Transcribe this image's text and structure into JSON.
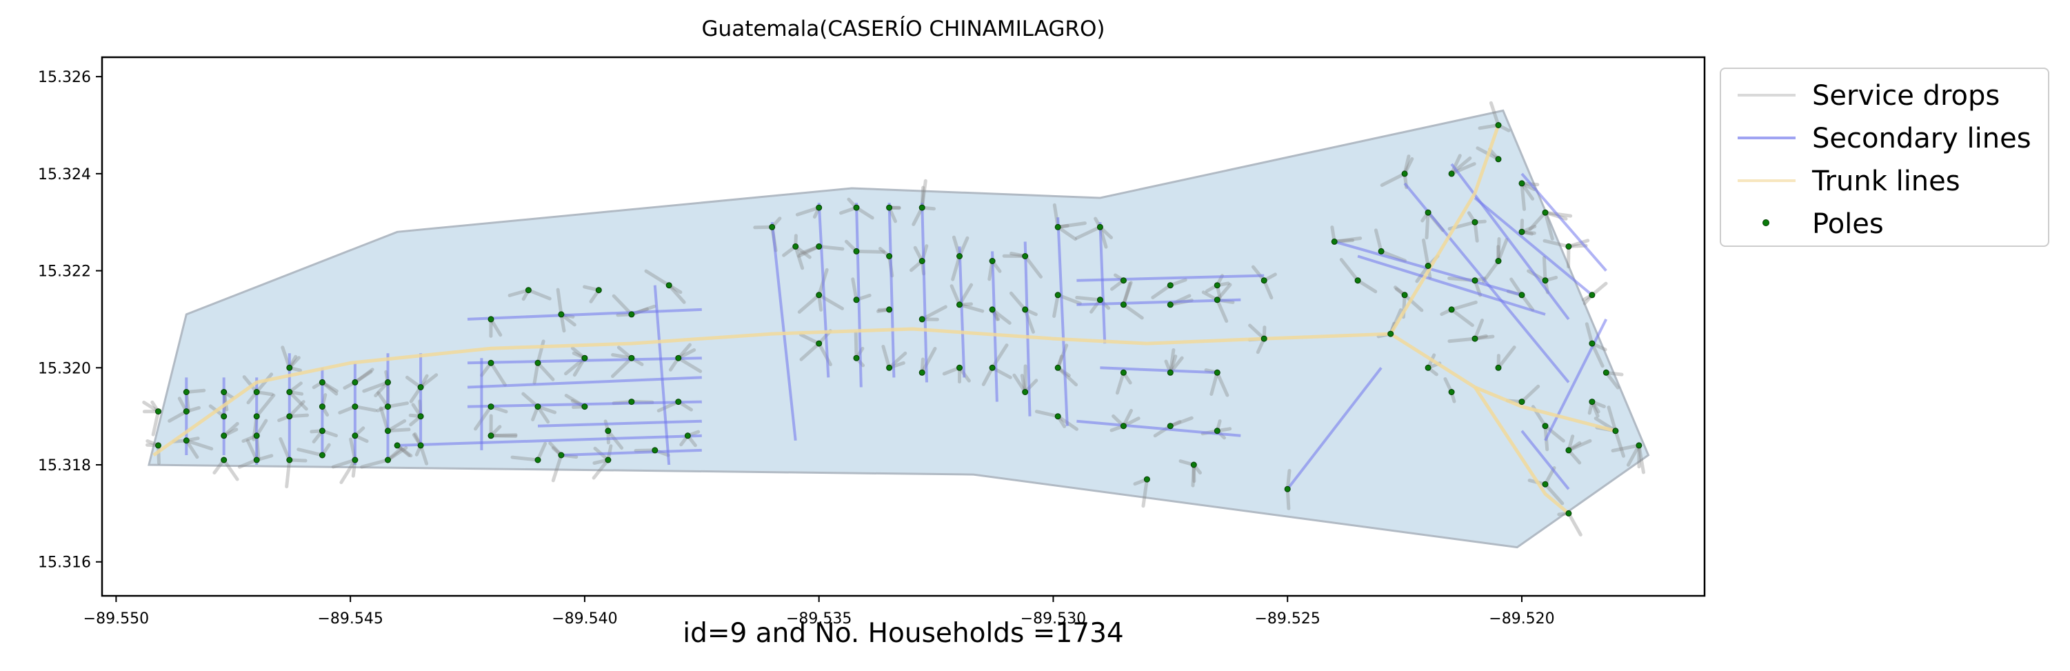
{
  "chart_data": {
    "type": "map",
    "title": "Guatemala(CASERÍO CHINAMILAGRO)",
    "caption": "id=9 and No. Households =1734",
    "xlim": [
      -89.5503,
      -89.5161
    ],
    "ylim": [
      15.3153,
      15.3264
    ],
    "x_ticks": [
      {
        "value": -89.55,
        "label": "−89.550"
      },
      {
        "value": -89.545,
        "label": "−89.545"
      },
      {
        "value": -89.54,
        "label": "−89.540"
      },
      {
        "value": -89.535,
        "label": "−89.535"
      },
      {
        "value": -89.53,
        "label": "−89.530"
      },
      {
        "value": -89.525,
        "label": "−89.525"
      },
      {
        "value": -89.52,
        "label": "−89.520"
      }
    ],
    "y_ticks": [
      {
        "value": 15.316,
        "label": "15.316"
      },
      {
        "value": 15.318,
        "label": "15.318"
      },
      {
        "value": 15.32,
        "label": "15.320"
      },
      {
        "value": 15.322,
        "label": "15.322"
      },
      {
        "value": 15.324,
        "label": "15.324"
      },
      {
        "value": 15.326,
        "label": "15.326"
      }
    ],
    "boundary": [
      [
        -89.5493,
        15.318
      ],
      [
        -89.5485,
        15.3211
      ],
      [
        -89.544,
        15.3228
      ],
      [
        -89.5343,
        15.3237
      ],
      [
        -89.529,
        15.3235
      ],
      [
        -89.5204,
        15.3253
      ],
      [
        -89.5173,
        15.3182
      ],
      [
        -89.5201,
        15.3163
      ],
      [
        -89.5317,
        15.3178
      ],
      [
        -89.5493,
        15.318
      ]
    ],
    "legend": [
      {
        "label": "Service drops",
        "color": "#bfbfbf"
      },
      {
        "label": "Secondary lines",
        "color": "#6f74ec"
      },
      {
        "label": "Trunk lines",
        "color": "#f2d99a"
      },
      {
        "label": "Poles",
        "color": "#0a7a0a"
      }
    ],
    "legend_position": "outside upper-right",
    "colors": {
      "area_fill": "#d2e3ef",
      "area_edge": "#b1bac4",
      "service": "#bfbfbf",
      "secondary": "#6f74ec",
      "trunk": "#f2d99a",
      "pole": "#0a7a0a"
    },
    "trunk_lines": [
      [
        [
          -89.5492,
          15.3182
        ],
        [
          -89.547,
          15.3197
        ],
        [
          -89.545,
          15.3201
        ],
        [
          -89.542,
          15.3204
        ],
        [
          -89.539,
          15.3205
        ],
        [
          -89.536,
          15.3207
        ],
        [
          -89.533,
          15.3208
        ],
        [
          -89.53,
          15.3206
        ],
        [
          -89.528,
          15.3205
        ],
        [
          -89.5255,
          15.3206
        ],
        [
          -89.5228,
          15.3207
        ],
        [
          -89.521,
          15.3196
        ],
        [
          -89.52,
          15.3192
        ],
        [
          -89.518,
          15.3187
        ]
      ],
      [
        [
          -89.5228,
          15.3207
        ],
        [
          -89.521,
          15.3236
        ],
        [
          -89.5205,
          15.325
        ]
      ],
      [
        [
          -89.521,
          15.3196
        ],
        [
          -89.5195,
          15.3174
        ],
        [
          -89.519,
          15.317
        ]
      ]
    ],
    "secondary_lines": [
      [
        [
          -89.5485,
          15.3198
        ],
        [
          -89.5485,
          15.3182
        ]
      ],
      [
        [
          -89.5477,
          15.3198
        ],
        [
          -89.5477,
          15.3182
        ]
      ],
      [
        [
          -89.547,
          15.3198
        ],
        [
          -89.547,
          15.318
        ]
      ],
      [
        [
          -89.5463,
          15.3203
        ],
        [
          -89.5463,
          15.3181
        ]
      ],
      [
        [
          -89.5456,
          15.32
        ],
        [
          -89.5456,
          15.3182
        ]
      ],
      [
        [
          -89.5449,
          15.3201
        ],
        [
          -89.5449,
          15.318
        ]
      ],
      [
        [
          -89.5442,
          15.3203
        ],
        [
          -89.5442,
          15.3181
        ]
      ],
      [
        [
          -89.5435,
          15.3203
        ],
        [
          -89.5435,
          15.3184
        ]
      ],
      [
        [
          -89.5422,
          15.3202
        ],
        [
          -89.5422,
          15.3183
        ]
      ],
      [
        [
          -89.5425,
          15.321
        ],
        [
          -89.5375,
          15.3212
        ]
      ],
      [
        [
          -89.5425,
          15.3201
        ],
        [
          -89.5375,
          15.3202
        ]
      ],
      [
        [
          -89.5425,
          15.3196
        ],
        [
          -89.5375,
          15.3198
        ]
      ],
      [
        [
          -89.5425,
          15.3192
        ],
        [
          -89.5375,
          15.3193
        ]
      ],
      [
        [
          -89.541,
          15.3188
        ],
        [
          -89.5375,
          15.3189
        ]
      ],
      [
        [
          -89.544,
          15.3184
        ],
        [
          -89.5375,
          15.3186
        ]
      ],
      [
        [
          -89.5405,
          15.3182
        ],
        [
          -89.5375,
          15.3183
        ]
      ],
      [
        [
          -89.5385,
          15.3217
        ],
        [
          -89.5382,
          15.318
        ]
      ],
      [
        [
          -89.536,
          15.323
        ],
        [
          -89.5355,
          15.3185
        ]
      ],
      [
        [
          -89.535,
          15.3234
        ],
        [
          -89.5348,
          15.3198
        ]
      ],
      [
        [
          -89.5342,
          15.3234
        ],
        [
          -89.5341,
          15.3196
        ]
      ],
      [
        [
          -89.5335,
          15.3234
        ],
        [
          -89.5334,
          15.3198
        ]
      ],
      [
        [
          -89.5328,
          15.3234
        ],
        [
          -89.5327,
          15.3197
        ]
      ],
      [
        [
          -89.532,
          15.3225
        ],
        [
          -89.5319,
          15.3198
        ]
      ],
      [
        [
          -89.5313,
          15.3224
        ],
        [
          -89.5312,
          15.3193
        ]
      ],
      [
        [
          -89.5306,
          15.3226
        ],
        [
          -89.5305,
          15.319
        ]
      ],
      [
        [
          -89.5299,
          15.3231
        ],
        [
          -89.5297,
          15.3188
        ]
      ],
      [
        [
          -89.529,
          15.323
        ],
        [
          -89.5289,
          15.3205
        ]
      ],
      [
        [
          -89.5295,
          15.3213
        ],
        [
          -89.526,
          15.3214
        ]
      ],
      [
        [
          -89.5295,
          15.3218
        ],
        [
          -89.5255,
          15.3219
        ]
      ],
      [
        [
          -89.529,
          15.32
        ],
        [
          -89.5265,
          15.3199
        ]
      ],
      [
        [
          -89.5295,
          15.3189
        ],
        [
          -89.526,
          15.3186
        ]
      ],
      [
        [
          -89.524,
          15.3226
        ],
        [
          -89.52,
          15.3215
        ]
      ],
      [
        [
          -89.5235,
          15.3223
        ],
        [
          -89.5195,
          15.3211
        ]
      ],
      [
        [
          -89.5225,
          15.3238
        ],
        [
          -89.519,
          15.3197
        ]
      ],
      [
        [
          -89.5215,
          15.3242
        ],
        [
          -89.519,
          15.321
        ]
      ],
      [
        [
          -89.521,
          15.3235
        ],
        [
          -89.5185,
          15.3215
        ]
      ],
      [
        [
          -89.52,
          15.324
        ],
        [
          -89.5182,
          15.322
        ]
      ],
      [
        [
          -89.519,
          15.3175
        ],
        [
          -89.52,
          15.3187
        ]
      ],
      [
        [
          -89.525,
          15.3175
        ],
        [
          -89.523,
          15.32
        ]
      ],
      [
        [
          -89.5195,
          15.3185
        ],
        [
          -89.5182,
          15.321
        ]
      ]
    ],
    "poles": [
      [
        -89.5491,
        15.3184
      ],
      [
        -89.5491,
        15.3191
      ],
      [
        -89.5485,
        15.3185
      ],
      [
        -89.5485,
        15.3191
      ],
      [
        -89.5485,
        15.3195
      ],
      [
        -89.5477,
        15.3181
      ],
      [
        -89.5477,
        15.3186
      ],
      [
        -89.5477,
        15.319
      ],
      [
        -89.5477,
        15.3195
      ],
      [
        -89.547,
        15.3181
      ],
      [
        -89.547,
        15.3186
      ],
      [
        -89.547,
        15.319
      ],
      [
        -89.547,
        15.3195
      ],
      [
        -89.5463,
        15.3181
      ],
      [
        -89.5463,
        15.319
      ],
      [
        -89.5463,
        15.3195
      ],
      [
        -89.5463,
        15.32
      ],
      [
        -89.5456,
        15.3182
      ],
      [
        -89.5456,
        15.3187
      ],
      [
        -89.5456,
        15.3192
      ],
      [
        -89.5456,
        15.3197
      ],
      [
        -89.5449,
        15.3181
      ],
      [
        -89.5449,
        15.3186
      ],
      [
        -89.5449,
        15.3192
      ],
      [
        -89.5449,
        15.3197
      ],
      [
        -89.5442,
        15.3181
      ],
      [
        -89.5442,
        15.3187
      ],
      [
        -89.5442,
        15.3192
      ],
      [
        -89.5442,
        15.3197
      ],
      [
        -89.5435,
        15.3184
      ],
      [
        -89.5435,
        15.319
      ],
      [
        -89.5435,
        15.3196
      ],
      [
        -89.542,
        15.321
      ],
      [
        -89.5412,
        15.3216
      ],
      [
        -89.5405,
        15.3211
      ],
      [
        -89.5397,
        15.3216
      ],
      [
        -89.539,
        15.3211
      ],
      [
        -89.5382,
        15.3217
      ],
      [
        -89.542,
        15.3201
      ],
      [
        -89.541,
        15.3201
      ],
      [
        -89.54,
        15.3202
      ],
      [
        -89.539,
        15.3202
      ],
      [
        -89.538,
        15.3202
      ],
      [
        -89.542,
        15.3192
      ],
      [
        -89.541,
        15.3192
      ],
      [
        -89.54,
        15.3192
      ],
      [
        -89.539,
        15.3193
      ],
      [
        -89.538,
        15.3193
      ],
      [
        -89.542,
        15.3186
      ],
      [
        -89.5405,
        15.3182
      ],
      [
        -89.5395,
        15.3187
      ],
      [
        -89.5385,
        15.3183
      ],
      [
        -89.5378,
        15.3186
      ],
      [
        -89.544,
        15.3184
      ],
      [
        -89.541,
        15.3181
      ],
      [
        -89.5395,
        15.3181
      ],
      [
        -89.536,
        15.3229
      ],
      [
        -89.5355,
        15.3225
      ],
      [
        -89.535,
        15.3233
      ],
      [
        -89.535,
        15.3225
      ],
      [
        -89.535,
        15.3215
      ],
      [
        -89.535,
        15.3205
      ],
      [
        -89.5342,
        15.3233
      ],
      [
        -89.5342,
        15.3224
      ],
      [
        -89.5342,
        15.3214
      ],
      [
        -89.5342,
        15.3202
      ],
      [
        -89.5335,
        15.3233
      ],
      [
        -89.5335,
        15.3223
      ],
      [
        -89.5335,
        15.3212
      ],
      [
        -89.5335,
        15.32
      ],
      [
        -89.5328,
        15.3233
      ],
      [
        -89.5328,
        15.3222
      ],
      [
        -89.5328,
        15.321
      ],
      [
        -89.5328,
        15.3199
      ],
      [
        -89.532,
        15.3223
      ],
      [
        -89.532,
        15.3213
      ],
      [
        -89.532,
        15.32
      ],
      [
        -89.5313,
        15.3222
      ],
      [
        -89.5313,
        15.3212
      ],
      [
        -89.5313,
        15.32
      ],
      [
        -89.5306,
        15.3223
      ],
      [
        -89.5306,
        15.3212
      ],
      [
        -89.5306,
        15.3195
      ],
      [
        -89.5299,
        15.3229
      ],
      [
        -89.5299,
        15.3215
      ],
      [
        -89.5299,
        15.32
      ],
      [
        -89.5299,
        15.319
      ],
      [
        -89.529,
        15.3229
      ],
      [
        -89.529,
        15.3214
      ],
      [
        -89.5285,
        15.3218
      ],
      [
        -89.5275,
        15.3217
      ],
      [
        -89.5265,
        15.3217
      ],
      [
        -89.5255,
        15.3218
      ],
      [
        -89.5285,
        15.3213
      ],
      [
        -89.5275,
        15.3213
      ],
      [
        -89.5265,
        15.3214
      ],
      [
        -89.5285,
        15.3199
      ],
      [
        -89.5275,
        15.3199
      ],
      [
        -89.5265,
        15.3199
      ],
      [
        -89.5285,
        15.3188
      ],
      [
        -89.5275,
        15.3188
      ],
      [
        -89.5265,
        15.3187
      ],
      [
        -89.5255,
        15.3206
      ],
      [
        -89.525,
        15.3175
      ],
      [
        -89.527,
        15.318
      ],
      [
        -89.528,
        15.3177
      ],
      [
        -89.524,
        15.3226
      ],
      [
        -89.523,
        15.3224
      ],
      [
        -89.522,
        15.3221
      ],
      [
        -89.521,
        15.3218
      ],
      [
        -89.52,
        15.3215
      ],
      [
        -89.5235,
        15.3218
      ],
      [
        -89.5225,
        15.3215
      ],
      [
        -89.5215,
        15.3212
      ],
      [
        -89.5225,
        15.324
      ],
      [
        -89.522,
        15.3232
      ],
      [
        -89.5215,
        15.324
      ],
      [
        -89.521,
        15.323
      ],
      [
        -89.5205,
        15.3243
      ],
      [
        -89.52,
        15.3238
      ],
      [
        -89.5195,
        15.3232
      ],
      [
        -89.519,
        15.3225
      ],
      [
        -89.52,
        15.3228
      ],
      [
        -89.5205,
        15.3222
      ],
      [
        -89.5195,
        15.3218
      ],
      [
        -89.5185,
        15.3215
      ],
      [
        -89.5228,
        15.3207
      ],
      [
        -89.522,
        15.32
      ],
      [
        -89.5215,
        15.3195
      ],
      [
        -89.521,
        15.3206
      ],
      [
        -89.5205,
        15.32
      ],
      [
        -89.52,
        15.3193
      ],
      [
        -89.5195,
        15.3188
      ],
      [
        -89.519,
        15.3183
      ],
      [
        -89.5195,
        15.3176
      ],
      [
        -89.519,
        15.317
      ],
      [
        -89.5185,
        15.3205
      ],
      [
        -89.5182,
        15.3199
      ],
      [
        -89.5185,
        15.3193
      ],
      [
        -89.518,
        15.3187
      ],
      [
        -89.5175,
        15.3184
      ],
      [
        -89.5205,
        15.325
      ]
    ]
  }
}
